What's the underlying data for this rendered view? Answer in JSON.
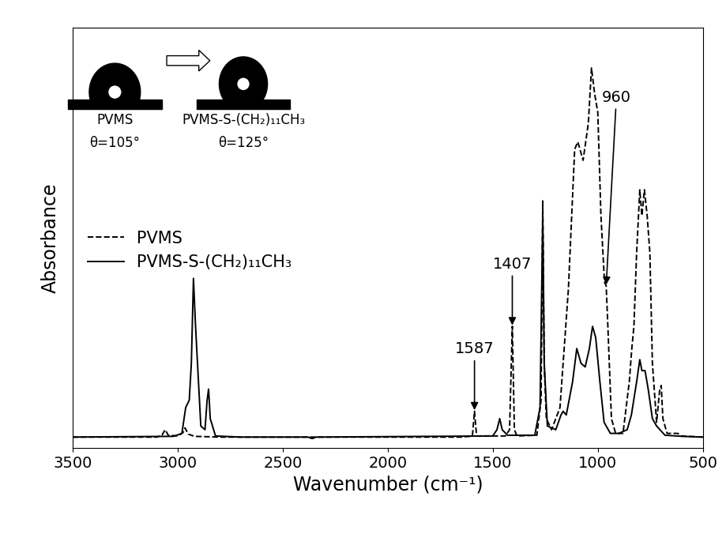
{
  "chart_data": {
    "type": "line",
    "x_label": "Wavenumber (cm⁻¹)",
    "y_label": "Absorbance",
    "xlim": [
      3500,
      500
    ],
    "xticks": [
      3500,
      3000,
      2500,
      2000,
      1500,
      1000,
      500
    ],
    "ylim": [
      -0.03,
      1.11
    ],
    "yticks": [],
    "tick_labels": "x",
    "grid": false,
    "legend": "center left",
    "series": [
      {
        "name": "PVMS",
        "color": "#000000",
        "line_style": "dashed",
        "x": [
          3500,
          3100,
          3075,
          3060,
          3045,
          3000,
          2975,
          2965,
          2950,
          2920,
          2800,
          1650,
          1610,
          1597,
          1587,
          1577,
          1440,
          1420,
          1407,
          1397,
          1385,
          1290,
          1270,
          1262,
          1255,
          1245,
          1220,
          1180,
          1140,
          1110,
          1095,
          1070,
          1045,
          1030,
          1015,
          1000,
          985,
          968,
          960,
          952,
          935,
          915,
          880,
          850,
          838,
          828,
          815,
          800,
          790,
          778,
          765,
          752,
          740,
          720,
          705,
          698,
          690,
          670,
          620,
          600,
          500
        ],
        "values": [
          0,
          0,
          0.005,
          0.02,
          0.005,
          0.003,
          0.012,
          0.025,
          0.008,
          0.002,
          0,
          0,
          0.002,
          0.003,
          0.07,
          0.003,
          0.003,
          0.02,
          0.3,
          0.02,
          0.003,
          0.005,
          0.1,
          0.64,
          0.2,
          0.05,
          0.02,
          0.08,
          0.4,
          0.78,
          0.8,
          0.75,
          0.85,
          1.0,
          0.93,
          0.88,
          0.6,
          0.42,
          0.41,
          0.3,
          0.05,
          0.01,
          0.01,
          0.15,
          0.24,
          0.3,
          0.5,
          0.67,
          0.6,
          0.67,
          0.6,
          0.5,
          0.2,
          0.04,
          0.13,
          0.14,
          0.05,
          0.01,
          0.01,
          0.003,
          0
        ]
      },
      {
        "name": "PVMS-S-(CH₂)₁₁CH₃",
        "color": "#000000",
        "line_style": "solid",
        "x": [
          3500,
          3020,
          2980,
          2962,
          2945,
          2935,
          2925,
          2915,
          2890,
          2870,
          2860,
          2853,
          2845,
          2820,
          2700,
          2380,
          2360,
          2340,
          1500,
          1480,
          1467,
          1455,
          1430,
          1300,
          1275,
          1262,
          1255,
          1240,
          1200,
          1175,
          1165,
          1150,
          1120,
          1100,
          1080,
          1060,
          1040,
          1025,
          1010,
          990,
          970,
          940,
          900,
          860,
          840,
          815,
          800,
          790,
          775,
          760,
          740,
          720,
          680,
          600,
          500
        ],
        "values": [
          0,
          0.002,
          0.01,
          0.08,
          0.1,
          0.2,
          0.43,
          0.3,
          0.03,
          0.02,
          0.1,
          0.13,
          0.05,
          0.003,
          0,
          0,
          -0.004,
          0,
          0.003,
          0.02,
          0.05,
          0.02,
          0.005,
          0.005,
          0.08,
          0.6,
          0.2,
          0.03,
          0.02,
          0.06,
          0.07,
          0.06,
          0.15,
          0.24,
          0.2,
          0.19,
          0.24,
          0.3,
          0.27,
          0.15,
          0.04,
          0.01,
          0.01,
          0.02,
          0.06,
          0.15,
          0.21,
          0.18,
          0.18,
          0.13,
          0.05,
          0.03,
          0.005,
          0.002,
          0
        ]
      }
    ],
    "annotations": [
      {
        "text": "1587",
        "x": 1587,
        "y": 0.07
      },
      {
        "text": "1407",
        "x": 1407,
        "y": 0.3
      },
      {
        "text": "960",
        "x": 960,
        "y": 0.41
      }
    ],
    "insets": [
      {
        "name": "PVMS",
        "label": "θ=105°",
        "contact_angle": 105
      },
      {
        "name": "PVMS-S-(CH₂)₁₁CH₃",
        "label": "θ=125°",
        "contact_angle": 125
      }
    ]
  }
}
